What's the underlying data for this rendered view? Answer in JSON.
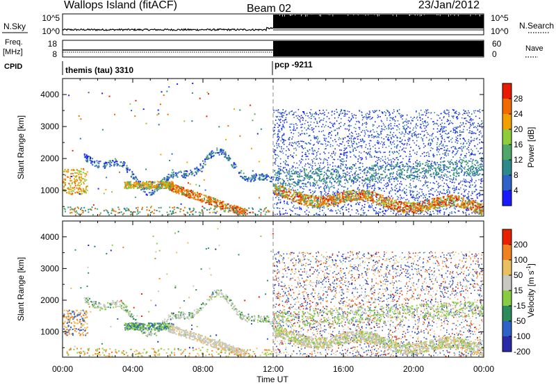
{
  "header": {
    "station": "Wallops Island (fitACF)",
    "beam": "Beam 02",
    "date": "23/Jan/2012"
  },
  "chart_data": [
    {
      "type": "line",
      "panel": "noise",
      "left_label": "N.Sky",
      "right_label": "N.Search",
      "left_ticks": [
        "10^5",
        "10^0"
      ],
      "right_ticks": [
        "10^5",
        "10^0"
      ]
    },
    {
      "type": "line",
      "panel": "frequency",
      "left_label_1": "Freq.",
      "left_label_2": "[MHz]",
      "right_label": "Nave",
      "left_ticks": [
        "18",
        "8"
      ],
      "right_ticks": [
        "60",
        "0"
      ]
    },
    {
      "type": "table",
      "panel": "cpid",
      "label": "CPID",
      "segments": [
        {
          "start_hour": 0,
          "name": "themis (tau) 3310"
        },
        {
          "start_hour": 12,
          "name": "pcp -9211"
        }
      ]
    },
    {
      "type": "heatmap",
      "panel": "power",
      "ylabel": "Slant Range [km]",
      "yticks": [
        1000,
        2000,
        3000,
        4000
      ],
      "ylim": [
        200,
        4500
      ],
      "xlim": [
        0,
        24
      ],
      "colorbar_label": "Power [dB]",
      "colorbar_ticks": [
        "28",
        "24",
        "20",
        "16",
        "12",
        "8",
        "4"
      ],
      "colors": [
        "#1a1aff",
        "#2e62c8",
        "#2d8a8a",
        "#4fa86a",
        "#8fcc3a",
        "#f2a000",
        "#f06a00",
        "#e81a00"
      ]
    },
    {
      "type": "heatmap",
      "panel": "velocity",
      "ylabel": "Slant Range [km]",
      "yticks": [
        1000,
        2000,
        3000,
        4000
      ],
      "ylim": [
        200,
        4500
      ],
      "xlim": [
        0,
        24
      ],
      "xlabel": "Time UT",
      "xticks": [
        "00:00",
        "04:00",
        "08:00",
        "12:00",
        "16:00",
        "20:00",
        "00:00"
      ],
      "colorbar_label": "Velocity [m s",
      "colorbar_label_sup": "-1",
      "colorbar_label_end": "]",
      "colorbar_ticks": [
        "200",
        "100",
        "50",
        "15",
        "-15",
        "-50",
        "-100",
        "-200"
      ],
      "colors": [
        "#2a2aa8",
        "#2e62c8",
        "#2d8a5a",
        "#88cc44",
        "#c8c8c0",
        "#e8c060",
        "#f08020",
        "#e82000"
      ]
    }
  ]
}
